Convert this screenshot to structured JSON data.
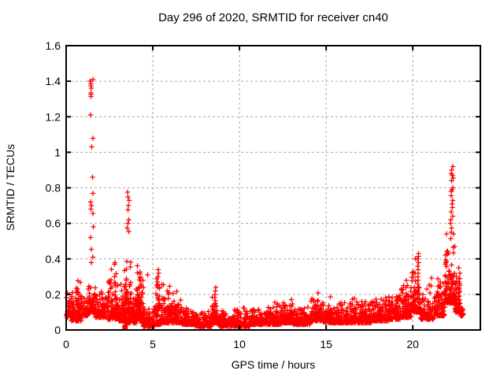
{
  "window": {
    "background": "#ffffff"
  },
  "chart_data": {
    "type": "scatter",
    "title": "Day 296 of 2020, SRMTID for receiver cn40",
    "xlabel": "GPS time / hours",
    "ylabel": "SRMTID / TECUs",
    "xlim": [
      0,
      23.9
    ],
    "ylim": [
      0,
      1.6
    ],
    "xticks": [
      0,
      5,
      10,
      15,
      20
    ],
    "xtick_labels": [
      "0",
      "5",
      "10",
      "15",
      "20"
    ],
    "yticks": [
      0,
      0.2,
      0.4,
      0.6,
      0.8,
      1,
      1.2,
      1.4,
      1.6
    ],
    "ytick_labels": [
      "0",
      "0.2",
      "0.4",
      "0.6",
      "0.8",
      "1",
      "1.2",
      "1.4",
      "1.6"
    ],
    "grid": true,
    "grid_color": "#a8a8a8",
    "border_color": "#000000",
    "legend": "none",
    "marker": {
      "glyph": "+",
      "color": "#ff0000",
      "size": 7
    },
    "series_name": "SRMTID",
    "seed": 296,
    "base_band_segments": [
      {
        "x0": 0.0,
        "x1": 0.3,
        "n": 40,
        "y0": 0.07,
        "y1": 0.25
      },
      {
        "x0": 0.3,
        "x1": 0.9,
        "n": 90,
        "y0": 0.05,
        "y1": 0.34
      },
      {
        "x0": 0.9,
        "x1": 1.25,
        "n": 50,
        "y0": 0.08,
        "y1": 0.22
      },
      {
        "x0": 1.25,
        "x1": 1.7,
        "n": 80,
        "y0": 0.1,
        "y1": 0.32
      },
      {
        "x0": 1.7,
        "x1": 2.4,
        "n": 90,
        "y0": 0.07,
        "y1": 0.24
      },
      {
        "x0": 2.4,
        "x1": 3.05,
        "n": 110,
        "y0": 0.06,
        "y1": 0.45
      },
      {
        "x0": 3.05,
        "x1": 3.35,
        "n": 50,
        "y0": 0.05,
        "y1": 0.3
      },
      {
        "x0": 3.35,
        "x1": 3.75,
        "n": 110,
        "y0": 0.04,
        "y1": 0.45
      },
      {
        "x0": 3.75,
        "x1": 4.05,
        "n": 60,
        "y0": 0.04,
        "y1": 0.26
      },
      {
        "x0": 4.05,
        "x1": 4.45,
        "n": 90,
        "y0": 0.05,
        "y1": 0.44
      },
      {
        "x0": 4.45,
        "x1": 5.1,
        "n": 110,
        "y0": 0.02,
        "y1": 0.13
      },
      {
        "x0": 5.1,
        "x1": 5.5,
        "n": 70,
        "y0": 0.03,
        "y1": 0.33
      },
      {
        "x0": 5.5,
        "x1": 6.1,
        "n": 90,
        "y0": 0.04,
        "y1": 0.3
      },
      {
        "x0": 6.1,
        "x1": 6.7,
        "n": 90,
        "y0": 0.04,
        "y1": 0.26
      },
      {
        "x0": 6.7,
        "x1": 7.4,
        "n": 100,
        "y0": 0.03,
        "y1": 0.15
      },
      {
        "x0": 7.4,
        "x1": 8.4,
        "n": 130,
        "y0": 0.02,
        "y1": 0.12
      },
      {
        "x0": 8.4,
        "x1": 8.75,
        "n": 50,
        "y0": 0.04,
        "y1": 0.24
      },
      {
        "x0": 8.75,
        "x1": 9.6,
        "n": 110,
        "y0": 0.02,
        "y1": 0.13
      },
      {
        "x0": 9.6,
        "x1": 10.6,
        "n": 130,
        "y0": 0.02,
        "y1": 0.15
      },
      {
        "x0": 10.6,
        "x1": 11.6,
        "n": 130,
        "y0": 0.03,
        "y1": 0.14
      },
      {
        "x0": 11.6,
        "x1": 12.4,
        "n": 110,
        "y0": 0.03,
        "y1": 0.16
      },
      {
        "x0": 12.4,
        "x1": 13.1,
        "n": 100,
        "y0": 0.04,
        "y1": 0.19
      },
      {
        "x0": 13.1,
        "x1": 14.1,
        "n": 130,
        "y0": 0.03,
        "y1": 0.16
      },
      {
        "x0": 14.1,
        "x1": 14.7,
        "n": 90,
        "y0": 0.05,
        "y1": 0.22
      },
      {
        "x0": 14.7,
        "x1": 15.5,
        "n": 110,
        "y0": 0.04,
        "y1": 0.19
      },
      {
        "x0": 15.5,
        "x1": 16.6,
        "n": 140,
        "y0": 0.04,
        "y1": 0.18
      },
      {
        "x0": 16.6,
        "x1": 17.6,
        "n": 130,
        "y0": 0.04,
        "y1": 0.2
      },
      {
        "x0": 17.6,
        "x1": 18.6,
        "n": 130,
        "y0": 0.05,
        "y1": 0.2
      },
      {
        "x0": 18.6,
        "x1": 19.3,
        "n": 100,
        "y0": 0.06,
        "y1": 0.24
      },
      {
        "x0": 19.3,
        "x1": 19.9,
        "n": 90,
        "y0": 0.07,
        "y1": 0.3
      },
      {
        "x0": 19.9,
        "x1": 20.45,
        "n": 80,
        "y0": 0.1,
        "y1": 0.43
      },
      {
        "x0": 20.45,
        "x1": 21.2,
        "n": 90,
        "y0": 0.06,
        "y1": 0.3
      },
      {
        "x0": 21.2,
        "x1": 21.85,
        "n": 90,
        "y0": 0.08,
        "y1": 0.33
      },
      {
        "x0": 21.85,
        "x1": 22.45,
        "n": 120,
        "y0": 0.15,
        "y1": 0.6
      },
      {
        "x0": 22.45,
        "x1": 22.75,
        "n": 50,
        "y0": 0.1,
        "y1": 0.36
      },
      {
        "x0": 22.75,
        "x1": 22.9,
        "n": 20,
        "y0": 0.08,
        "y1": 0.2
      }
    ],
    "spike_clusters": [
      {
        "x": 1.47,
        "dx": 0.09,
        "ys": [
          1.41,
          1.4,
          1.385,
          1.375,
          1.36,
          1.335,
          1.325,
          1.315,
          1.21,
          1.08,
          1.03,
          0.86,
          0.77,
          0.72,
          0.7,
          0.68,
          0.655,
          0.58,
          0.52,
          0.455,
          0.41,
          0.38
        ]
      },
      {
        "x": 3.58,
        "dx": 0.06,
        "ys": [
          0.775,
          0.75,
          0.73,
          0.7,
          0.675,
          0.62,
          0.6,
          0.575,
          0.555
        ]
      },
      {
        "x": 4.7,
        "dx": 0.02,
        "ys": [
          0.31
        ]
      },
      {
        "x": 5.3,
        "dx": 0.05,
        "ys": [
          0.34,
          0.32,
          0.3,
          0.27,
          0.24
        ]
      },
      {
        "x": 8.6,
        "dx": 0.04,
        "ys": [
          0.24,
          0.22,
          0.2,
          0.185,
          0.165,
          0.15,
          0.13,
          0.11,
          0.09
        ]
      },
      {
        "x": 20.3,
        "dx": 0.05,
        "ys": [
          0.43,
          0.415,
          0.4,
          0.38,
          0.36,
          0.34,
          0.32,
          0.3,
          0.28,
          0.26,
          0.24,
          0.22,
          0.2,
          0.18
        ]
      },
      {
        "x": 22.25,
        "dx": 0.08,
        "ys": [
          0.92,
          0.9,
          0.88,
          0.87,
          0.855,
          0.84,
          0.8,
          0.79,
          0.78,
          0.755,
          0.73,
          0.71,
          0.69,
          0.665,
          0.64,
          0.62,
          0.6,
          0.575,
          0.55
        ]
      },
      {
        "x": 22.68,
        "dx": 0.04,
        "ys": [
          0.35,
          0.32,
          0.29,
          0.27,
          0.25,
          0.23,
          0.21,
          0.19,
          0.17,
          0.15,
          0.13,
          0.11
        ]
      },
      {
        "x": 3.4,
        "dx": 0.02,
        "shape": "square",
        "ys": [
          0.013
        ]
      }
    ]
  }
}
